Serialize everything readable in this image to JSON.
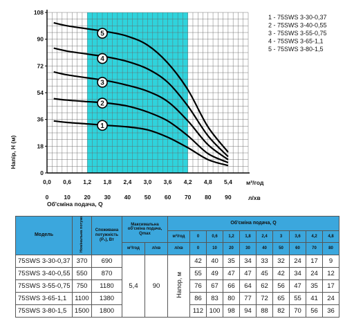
{
  "chart_data": {
    "type": "line",
    "ylabel": "Напір, H (м)",
    "xlabel_top_unit": "м³/год",
    "xlabel_bottom": "Об'сміна подача, Q",
    "xlabel_bottom_unit": "л/хв",
    "x_ticks_m3h": [
      "0,0",
      "0,6",
      "1,2",
      "1,8",
      "2,4",
      "3,0",
      "3,6",
      "4,2",
      "4,8",
      "5,4"
    ],
    "x_ticks_lmin": [
      "0",
      "10",
      "20",
      "30",
      "40",
      "50",
      "60",
      "70",
      "80",
      "90"
    ],
    "y_ticks": [
      "0",
      "18",
      "36",
      "54",
      "72",
      "90",
      "108"
    ],
    "xlim_m3h": [
      0,
      6
    ],
    "ylim": [
      0,
      108
    ],
    "highlight_range_m3h": [
      1.2,
      4.2
    ],
    "highlight_color": "#2fd3dc",
    "grid": true,
    "legend_position": "top-right",
    "legend": [
      "1 - 75SWS 3-30-0,37",
      "2 - 75SWS 3-40-0,55",
      "3 - 75SWS 3-55-0,75",
      "4 - 75SWS 3-65-1,1",
      "5 - 75SWS 3-80-1,5"
    ],
    "series": [
      {
        "name": "1",
        "x": [
          0.2,
          0.6,
          1.2,
          1.8,
          2.4,
          3.0,
          3.6,
          4.2,
          4.8,
          5.4
        ],
        "values": [
          35,
          34,
          33,
          32,
          31,
          29,
          24,
          17,
          9,
          5
        ]
      },
      {
        "name": "2",
        "x": [
          0.2,
          0.6,
          1.2,
          1.8,
          2.4,
          3.0,
          3.6,
          4.2,
          4.8,
          5.4
        ],
        "values": [
          50,
          49,
          48,
          47,
          45,
          41,
          35,
          25,
          13,
          7
        ]
      },
      {
        "name": "3",
        "x": [
          0.2,
          0.6,
          1.2,
          1.8,
          2.4,
          3.0,
          3.6,
          4.2,
          4.8,
          5.4
        ],
        "values": [
          68,
          66,
          64,
          62,
          59,
          55,
          48,
          35,
          19,
          9
        ]
      },
      {
        "name": "4",
        "x": [
          0.2,
          0.6,
          1.2,
          1.8,
          2.4,
          3.0,
          3.6,
          4.2,
          4.8,
          5.4
        ],
        "values": [
          84,
          82,
          80,
          78,
          75,
          70,
          61,
          45,
          25,
          11
        ]
      },
      {
        "name": "5",
        "x": [
          0.2,
          0.6,
          1.2,
          1.8,
          2.4,
          3.0,
          3.6,
          4.2,
          4.8,
          5.4
        ],
        "values": [
          101,
          99,
          97,
          95,
          92,
          86,
          74,
          56,
          31,
          14
        ]
      }
    ],
    "curve_labels": [
      {
        "text": "1",
        "x": 1.65,
        "y": 32
      },
      {
        "text": "2",
        "x": 1.65,
        "y": 47
      },
      {
        "text": "3",
        "x": 1.65,
        "y": 61
      },
      {
        "text": "4",
        "x": 1.65,
        "y": 77
      },
      {
        "text": "5",
        "x": 1.65,
        "y": 94
      }
    ]
  },
  "table": {
    "header": {
      "model": "Модель",
      "rated_power": "Номінальна потужність (P₂), Вт",
      "consumed_power": "Споживана потужність (P₁), Вт",
      "max_flow": "Максимальна об'сміна подача, Qmax",
      "unit_m3h": "м³/год",
      "unit_lmin": "л/хв",
      "flow_title": "Об'сміна подача, Q",
      "head_label": "Напор, м",
      "q_m3h": [
        "0",
        "0,6",
        "1,2",
        "1,8",
        "2,4",
        "3",
        "3,6",
        "4,2",
        "4,8"
      ],
      "q_lmin": [
        "0",
        "10",
        "20",
        "30",
        "40",
        "50",
        "60",
        "70",
        "80"
      ]
    },
    "qmax_m3h": "5,4",
    "qmax_lmin": "90",
    "rows": [
      {
        "model": "75SWS 3-30-0,37",
        "p2": "370",
        "p1": "690",
        "heads": [
          "42",
          "40",
          "35",
          "34",
          "33",
          "32",
          "24",
          "17",
          "9"
        ]
      },
      {
        "model": "75SWS 3-40-0,55",
        "p2": "550",
        "p1": "870",
        "heads": [
          "55",
          "49",
          "47",
          "47",
          "45",
          "42",
          "34",
          "24",
          "12"
        ]
      },
      {
        "model": "75SWS 3-55-0,75",
        "p2": "750",
        "p1": "1180",
        "heads": [
          "76",
          "67",
          "66",
          "64",
          "62",
          "56",
          "47",
          "35",
          "17"
        ]
      },
      {
        "model": "75SWS 3-65-1,1",
        "p2": "1100",
        "p1": "1380",
        "heads": [
          "86",
          "83",
          "80",
          "77",
          "72",
          "65",
          "55",
          "41",
          "24"
        ]
      },
      {
        "model": "75SWS 3-80-1,5",
        "p2": "1500",
        "p1": "1800",
        "heads": [
          "112",
          "100",
          "98",
          "94",
          "88",
          "82",
          "70",
          "56",
          "36"
        ]
      }
    ]
  }
}
